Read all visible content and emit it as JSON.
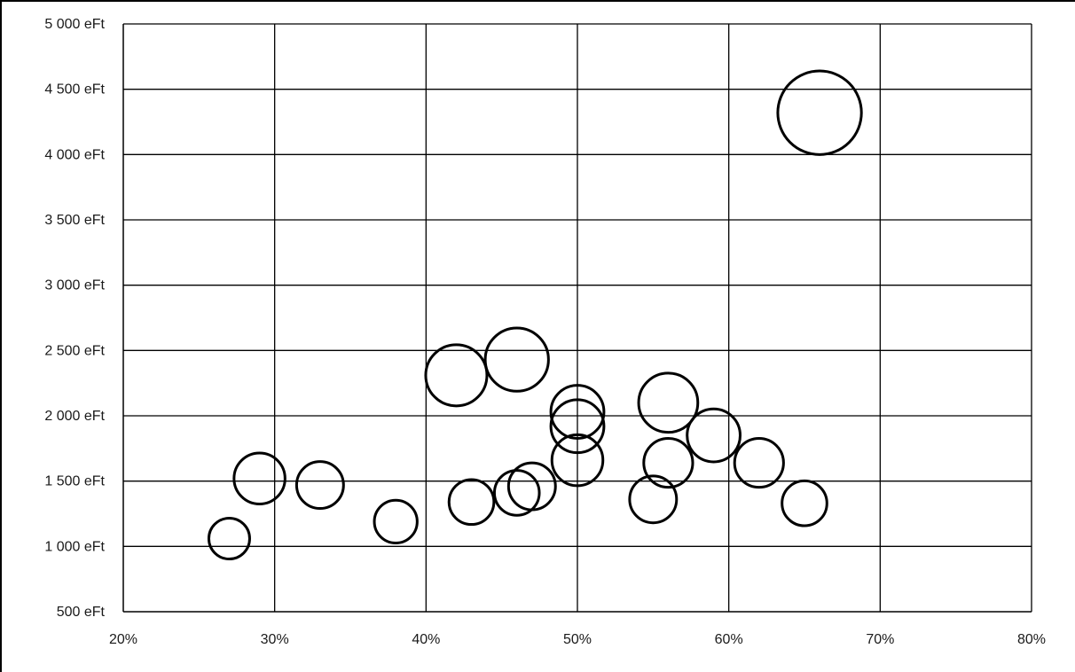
{
  "chart_data": {
    "type": "bubble",
    "title": "",
    "xlabel": "",
    "ylabel": "",
    "xlim": [
      0.2,
      0.8
    ],
    "ylim": [
      500,
      5000
    ],
    "x_ticks": [
      0.2,
      0.3,
      0.4,
      0.5,
      0.6,
      0.7,
      0.8
    ],
    "x_tick_labels": [
      "20%",
      "30%",
      "40%",
      "50%",
      "60%",
      "70%",
      "80%"
    ],
    "y_ticks": [
      500,
      1000,
      1500,
      2000,
      2500,
      3000,
      3500,
      4000,
      4500,
      5000
    ],
    "y_tick_labels": [
      "500 eFt",
      "1 000 eFt",
      "1 500 eFt",
      "2 000 eFt",
      "2 500 eFt",
      "3 000 eFt",
      "3 500 eFt",
      "4 000 eFt",
      "4 500 eFt",
      "5 000 eFt"
    ],
    "grid": true,
    "series": [
      {
        "points": [
          {
            "x": 0.27,
            "y": 1060,
            "size": 1.0
          },
          {
            "x": 0.29,
            "y": 1520,
            "size": 1.25
          },
          {
            "x": 0.33,
            "y": 1470,
            "size": 1.15
          },
          {
            "x": 0.38,
            "y": 1190,
            "size": 1.05
          },
          {
            "x": 0.42,
            "y": 2310,
            "size": 1.5
          },
          {
            "x": 0.43,
            "y": 1340,
            "size": 1.1
          },
          {
            "x": 0.46,
            "y": 2430,
            "size": 1.55
          },
          {
            "x": 0.46,
            "y": 1410,
            "size": 1.1
          },
          {
            "x": 0.47,
            "y": 1460,
            "size": 1.15
          },
          {
            "x": 0.5,
            "y": 2030,
            "size": 1.3
          },
          {
            "x": 0.5,
            "y": 1920,
            "size": 1.3
          },
          {
            "x": 0.5,
            "y": 1660,
            "size": 1.25
          },
          {
            "x": 0.55,
            "y": 1360,
            "size": 1.15
          },
          {
            "x": 0.56,
            "y": 2100,
            "size": 1.45
          },
          {
            "x": 0.56,
            "y": 1640,
            "size": 1.2
          },
          {
            "x": 0.59,
            "y": 1850,
            "size": 1.3
          },
          {
            "x": 0.62,
            "y": 1640,
            "size": 1.2
          },
          {
            "x": 0.65,
            "y": 1330,
            "size": 1.1
          },
          {
            "x": 0.66,
            "y": 4320,
            "size": 2.05
          }
        ]
      }
    ]
  }
}
